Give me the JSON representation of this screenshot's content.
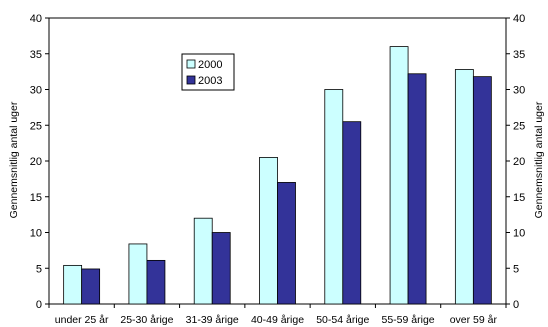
{
  "chart_data": {
    "type": "bar",
    "title": "",
    "xlabel": "",
    "ylabel": "Gennemsnitlig antal uger",
    "ylabel_right": "Gennemsnitlig antal uger",
    "ylim": [
      0,
      40
    ],
    "yticks": [
      0,
      5,
      10,
      15,
      20,
      25,
      30,
      35,
      40
    ],
    "grid": false,
    "legend_position": "top-left-inside",
    "categories": [
      "under 25 år",
      "25-30 årige",
      "31-39 årige",
      "40-49 årige",
      "50-54 årige",
      "55-59 årige",
      "over 59 år"
    ],
    "series": [
      {
        "name": "2000",
        "color": "#ccffff",
        "values": [
          5.4,
          8.4,
          12.0,
          20.5,
          30.0,
          36.0,
          32.8
        ]
      },
      {
        "name": "2003",
        "color": "#333399",
        "values": [
          4.9,
          6.1,
          10.0,
          17.0,
          25.5,
          32.2,
          31.8
        ]
      }
    ]
  }
}
